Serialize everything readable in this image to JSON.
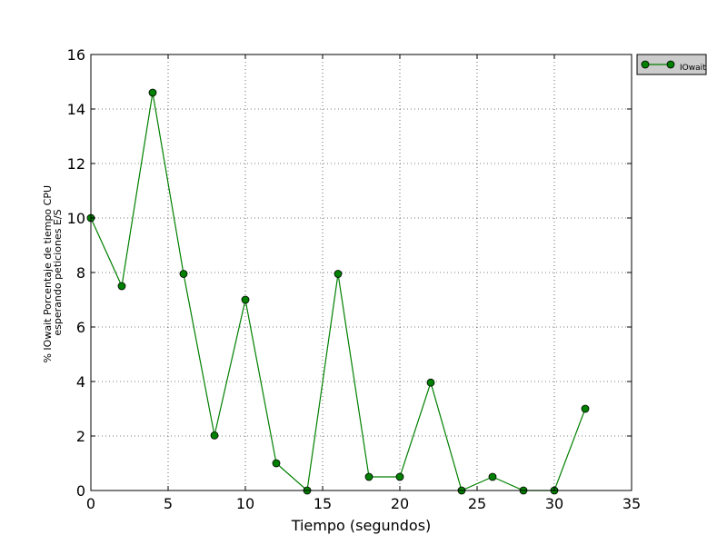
{
  "chart_data": {
    "type": "line",
    "title": "",
    "xlabel": "Tiempo (segundos)",
    "ylabel_lines": [
      "% IOwait Porcentaje de tiempo CPU",
      "esperando peticiones E/S"
    ],
    "xlim": [
      0,
      35
    ],
    "ylim": [
      0,
      16
    ],
    "xticks": [
      0,
      5,
      10,
      15,
      20,
      25,
      30,
      35
    ],
    "yticks": [
      0,
      2,
      4,
      6,
      8,
      10,
      12,
      14,
      16
    ],
    "grid": true,
    "legend_position": "outside-top-right",
    "series": [
      {
        "name": "IOwait",
        "color": "#008000",
        "marker": "circle",
        "x": [
          0,
          2,
          4,
          6,
          8,
          10,
          12,
          14,
          16,
          18,
          20,
          22,
          24,
          26,
          28,
          30,
          32
        ],
        "y": [
          10,
          7.5,
          14.6,
          7.95,
          2.02,
          7,
          1,
          0,
          7.95,
          0.5,
          0.5,
          3.96,
          0,
          0.5,
          0,
          0,
          3
        ]
      }
    ]
  }
}
